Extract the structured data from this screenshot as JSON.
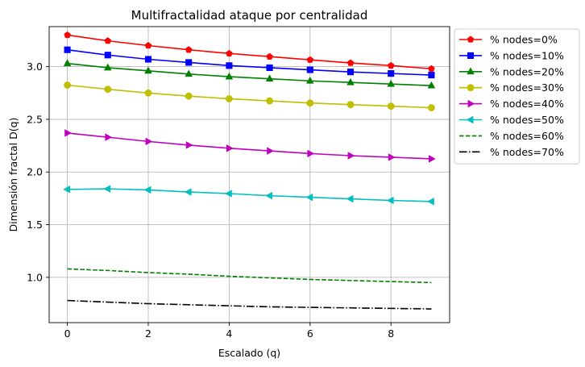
{
  "chart_data": {
    "type": "line",
    "title": "Multifractalidad ataque por centralidad",
    "xlabel": "Escalado (q)",
    "ylabel": "Dimensión fractal D(q)",
    "xlim": [
      -0.45,
      9.45
    ],
    "ylim": [
      0.57,
      3.38
    ],
    "xticks": [
      0,
      2,
      4,
      6,
      8
    ],
    "yticks": [
      1.0,
      1.5,
      2.0,
      2.5,
      3.0
    ],
    "ytick_labels": [
      "1.0",
      "1.5",
      "2.0",
      "2.5",
      "3.0"
    ],
    "grid": true,
    "legend_position": "outside-upper-right",
    "x": [
      0,
      1,
      2,
      3,
      4,
      5,
      6,
      7,
      8,
      9
    ],
    "series": [
      {
        "name": "% nodes=0%",
        "color": "#ff0000",
        "marker": "pentagon",
        "linestyle": "solid",
        "values": [
          3.3,
          3.245,
          3.2,
          3.16,
          3.125,
          3.095,
          3.065,
          3.035,
          3.01,
          2.98
        ]
      },
      {
        "name": "% nodes=10%",
        "color": "#0000ff",
        "marker": "square",
        "linestyle": "solid",
        "values": [
          3.16,
          3.11,
          3.07,
          3.04,
          3.01,
          2.99,
          2.97,
          2.95,
          2.935,
          2.92
        ]
      },
      {
        "name": "% nodes=20%",
        "color": "#008000",
        "marker": "triangle-up",
        "linestyle": "solid",
        "values": [
          3.03,
          2.99,
          2.96,
          2.93,
          2.905,
          2.885,
          2.865,
          2.85,
          2.835,
          2.82
        ]
      },
      {
        "name": "% nodes=30%",
        "color": "#bfbf00",
        "marker": "circle",
        "linestyle": "solid",
        "values": [
          2.825,
          2.785,
          2.75,
          2.72,
          2.695,
          2.675,
          2.655,
          2.64,
          2.625,
          2.61
        ]
      },
      {
        "name": "% nodes=40%",
        "color": "#bf00bf",
        "marker": "triangle-right",
        "linestyle": "solid",
        "values": [
          2.37,
          2.33,
          2.29,
          2.255,
          2.225,
          2.2,
          2.175,
          2.155,
          2.14,
          2.125
        ]
      },
      {
        "name": "% nodes=50%",
        "color": "#00bfbf",
        "marker": "triangle-left",
        "linestyle": "solid",
        "values": [
          1.835,
          1.84,
          1.83,
          1.81,
          1.795,
          1.775,
          1.76,
          1.745,
          1.73,
          1.72
        ]
      },
      {
        "name": "% nodes=60%",
        "color": "#008000",
        "marker": "none",
        "linestyle": "dashed",
        "values": [
          1.08,
          1.065,
          1.045,
          1.03,
          1.01,
          0.995,
          0.98,
          0.97,
          0.96,
          0.95
        ]
      },
      {
        "name": "% nodes=70%",
        "color": "#000000",
        "marker": "none",
        "linestyle": "dashdot",
        "values": [
          0.78,
          0.765,
          0.75,
          0.74,
          0.73,
          0.72,
          0.715,
          0.71,
          0.705,
          0.7
        ]
      }
    ]
  }
}
